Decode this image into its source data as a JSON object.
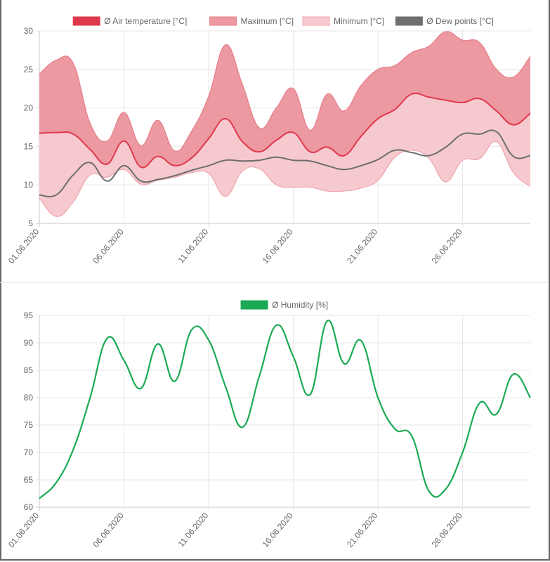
{
  "chart_data": [
    {
      "type": "area",
      "title": "",
      "xlabel": "",
      "ylabel": "",
      "ylim": [
        5,
        30
      ],
      "yticks": [
        5,
        10,
        15,
        20,
        25,
        30
      ],
      "grid": true,
      "legend_position": "top",
      "x": [
        "01.06.2020",
        "02.06.2020",
        "03.06.2020",
        "04.06.2020",
        "05.06.2020",
        "06.06.2020",
        "07.06.2020",
        "08.06.2020",
        "09.06.2020",
        "10.06.2020",
        "11.06.2020",
        "12.06.2020",
        "13.06.2020",
        "14.06.2020",
        "15.06.2020",
        "16.06.2020",
        "17.06.2020",
        "18.06.2020",
        "19.06.2020",
        "20.06.2020",
        "21.06.2020",
        "22.06.2020",
        "23.06.2020",
        "24.06.2020",
        "25.06.2020",
        "26.06.2020",
        "27.06.2020",
        "28.06.2020",
        "29.06.2020",
        "30.06.2020"
      ],
      "xtick_labels": [
        "01.06.2020",
        "06.06.2020",
        "11.06.2020",
        "16.06.2020",
        "21.06.2020",
        "26.06.2020"
      ],
      "series": [
        {
          "name": "Ø Air temperature [°C]",
          "color": "#e0384c",
          "kind": "line",
          "values": [
            16.7,
            16.8,
            16.6,
            14.6,
            12.7,
            15.7,
            12.3,
            13.7,
            12.5,
            13.5,
            16.0,
            18.6,
            15.6,
            14.3,
            15.8,
            16.8,
            14.3,
            14.9,
            13.8,
            16.3,
            18.6,
            19.8,
            21.8,
            21.4,
            21.0,
            20.7,
            21.2,
            19.6,
            17.8,
            19.3
          ]
        },
        {
          "name": "Maximum [°C]",
          "color": "#ec99a1",
          "kind": "band-upper",
          "values": [
            24.4,
            26.2,
            25.8,
            18.0,
            15.7,
            19.4,
            15.1,
            18.4,
            14.4,
            17.0,
            21.5,
            28.2,
            23.0,
            17.4,
            20.0,
            22.5,
            17.1,
            21.8,
            19.6,
            22.9,
            25.0,
            25.5,
            27.2,
            28.0,
            29.9,
            28.8,
            28.5,
            25.0,
            24.0,
            26.7
          ]
        },
        {
          "name": "Minimum [°C]",
          "color": "#f6c9cf",
          "kind": "band-lower",
          "values": [
            8.3,
            5.9,
            7.8,
            11.3,
            11.0,
            12.0,
            10.1,
            10.6,
            11.0,
            11.6,
            11.5,
            8.5,
            11.8,
            12.1,
            10.0,
            9.7,
            9.7,
            9.2,
            9.2,
            9.6,
            10.6,
            13.6,
            14.5,
            13.5,
            10.4,
            13.2,
            13.4,
            15.6,
            11.6,
            9.8
          ]
        },
        {
          "name": "Ø Dew points [°C]",
          "color": "#6e6e6e",
          "kind": "line",
          "values": [
            8.7,
            8.7,
            11.3,
            12.9,
            10.5,
            12.5,
            10.5,
            10.7,
            11.2,
            11.9,
            12.5,
            13.2,
            13.1,
            13.2,
            13.6,
            13.2,
            13.1,
            12.5,
            12.0,
            12.5,
            13.3,
            14.5,
            14.2,
            13.8,
            14.9,
            16.6,
            16.6,
            16.9,
            13.7,
            13.8
          ]
        }
      ]
    },
    {
      "type": "line",
      "title": "",
      "xlabel": "",
      "ylabel": "",
      "ylim": [
        60,
        95
      ],
      "yticks": [
        60,
        65,
        70,
        75,
        80,
        85,
        90,
        95
      ],
      "grid": true,
      "legend_position": "top",
      "x": [
        "01.06.2020",
        "02.06.2020",
        "03.06.2020",
        "04.06.2020",
        "05.06.2020",
        "06.06.2020",
        "07.06.2020",
        "08.06.2020",
        "09.06.2020",
        "10.06.2020",
        "11.06.2020",
        "12.06.2020",
        "13.06.2020",
        "14.06.2020",
        "15.06.2020",
        "16.06.2020",
        "17.06.2020",
        "18.06.2020",
        "19.06.2020",
        "20.06.2020",
        "21.06.2020",
        "22.06.2020",
        "23.06.2020",
        "24.06.2020",
        "25.06.2020",
        "26.06.2020",
        "27.06.2020",
        "28.06.2020",
        "29.06.2020",
        "30.06.2020"
      ],
      "xtick_labels": [
        "01.06.2020",
        "06.06.2020",
        "11.06.2020",
        "16.06.2020",
        "21.06.2020",
        "26.06.2020"
      ],
      "series": [
        {
          "name": "Ø Humidity [%]",
          "color": "#1aaa55",
          "kind": "line",
          "values": [
            61.6,
            64.5,
            70.5,
            80.0,
            90.8,
            86.8,
            81.7,
            89.8,
            83.0,
            92.4,
            90.5,
            82.0,
            74.6,
            84.0,
            93.2,
            87.5,
            80.6,
            94.0,
            86.2,
            90.4,
            80.0,
            74.3,
            73.0,
            63.0,
            63.3,
            70.0,
            79.0,
            77.0,
            84.3,
            80.0
          ]
        }
      ]
    }
  ]
}
